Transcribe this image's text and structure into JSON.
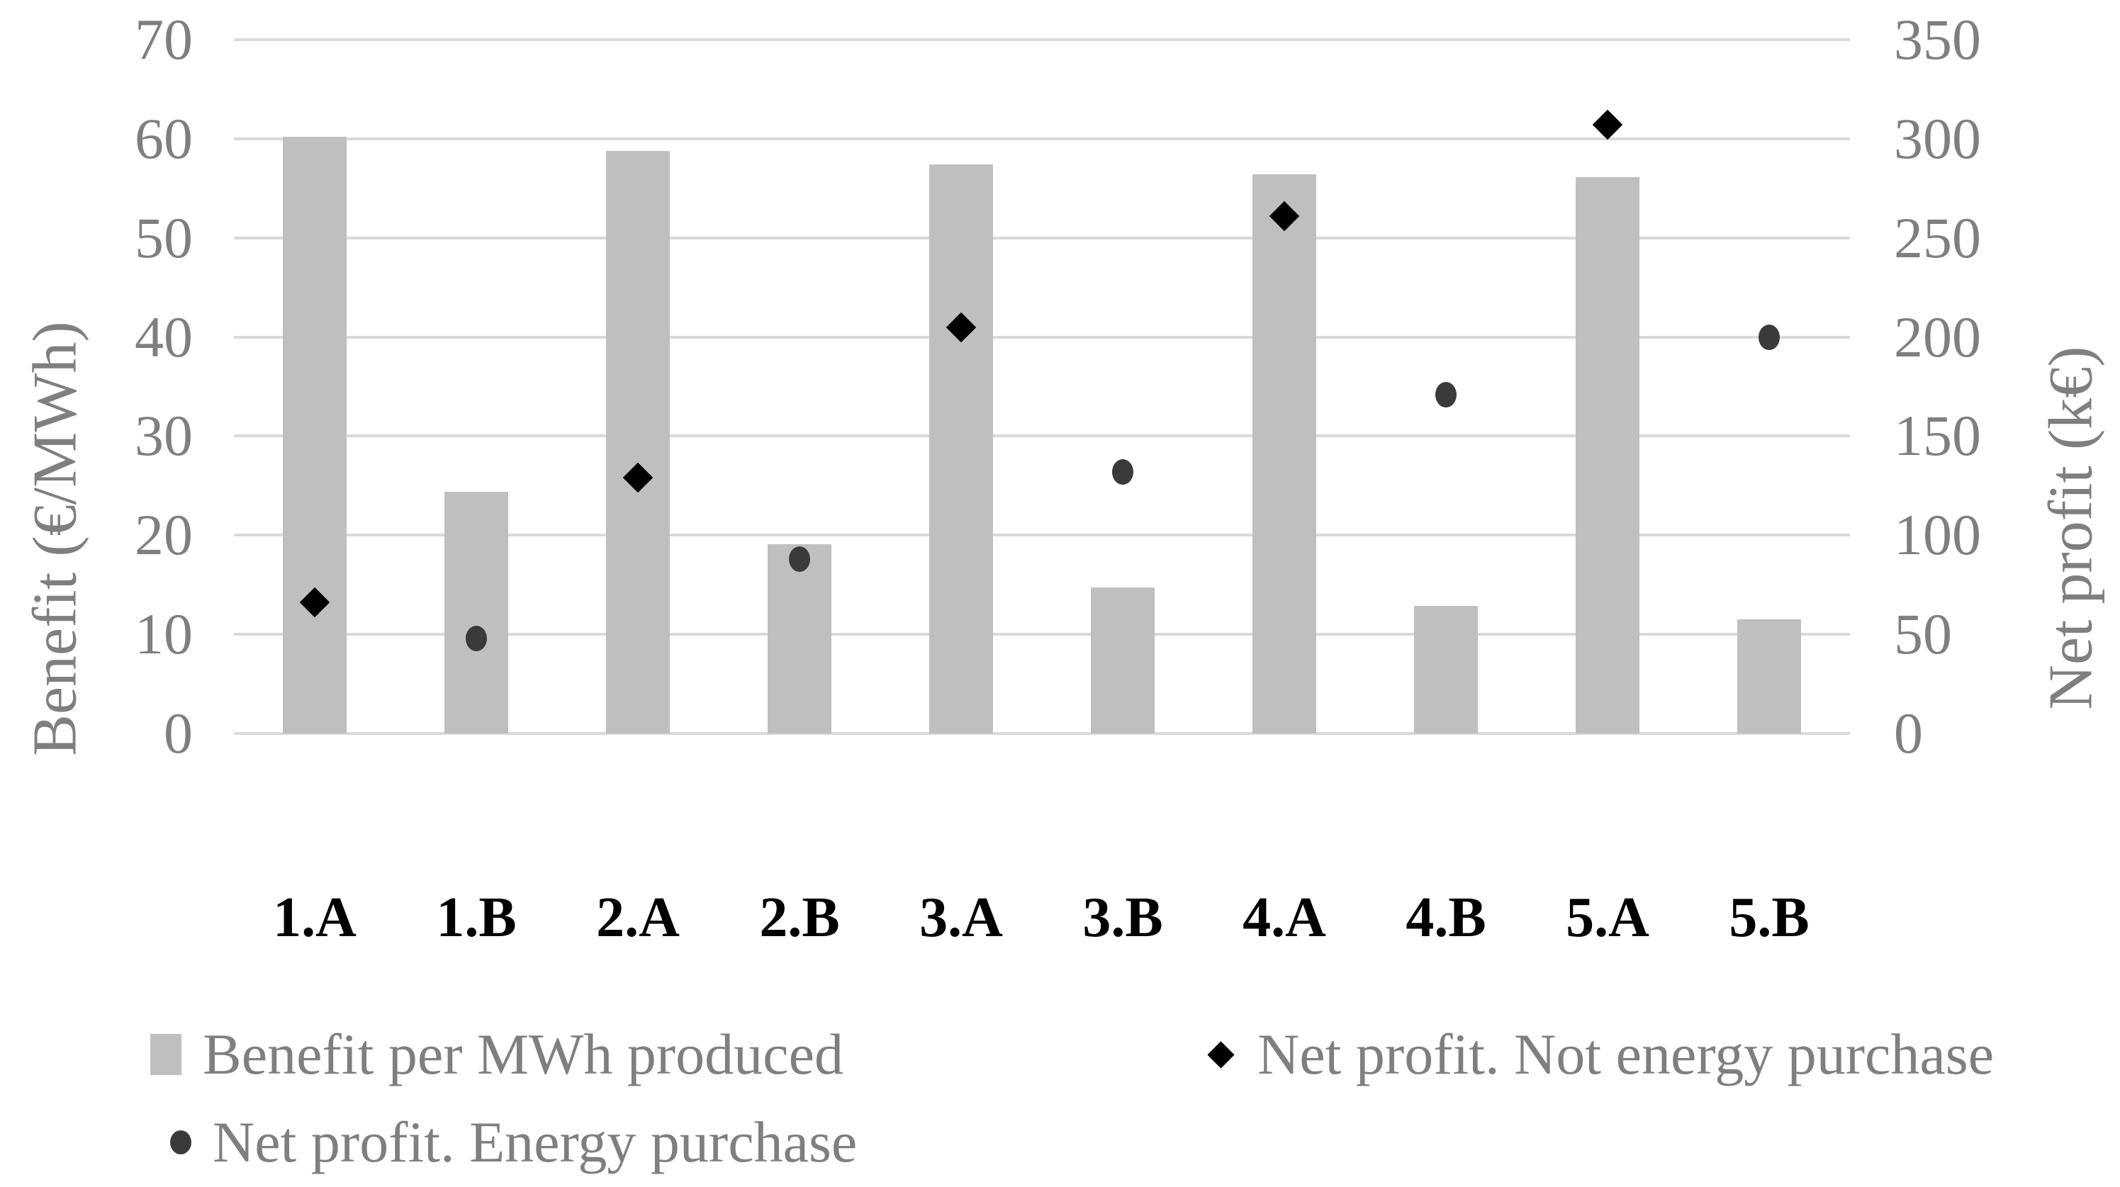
{
  "chart_data": {
    "type": "combo",
    "subtype": "bar + scatter markers, dual axis",
    "categories": [
      "1.A",
      "1.B",
      "2.A",
      "2.B",
      "3.A",
      "3.B",
      "4.A",
      "4.B",
      "5.A",
      "5.B"
    ],
    "series": [
      {
        "name": "Benefit per MWh produced",
        "type": "bar",
        "axis": "left",
        "marker": "bar",
        "values": [
          60.2,
          24.4,
          58.8,
          19.1,
          57.4,
          14.7,
          56.4,
          12.9,
          56.1,
          11.5
        ]
      },
      {
        "name": "Net profit. Not energy purchase",
        "type": "scatter",
        "axis": "right",
        "marker": "diamond",
        "values": [
          66,
          null,
          129,
          null,
          205,
          null,
          261,
          null,
          307,
          null
        ]
      },
      {
        "name": "Net profit. Energy purchase",
        "type": "scatter",
        "axis": "right",
        "marker": "circle",
        "values": [
          null,
          48,
          null,
          88,
          null,
          132,
          null,
          171,
          null,
          200
        ]
      }
    ],
    "left_axis": {
      "label": "Benefit (€/MWh)",
      "min": 0,
      "max": 70,
      "ticks": [
        70,
        60,
        50,
        40,
        30,
        20,
        10,
        0
      ]
    },
    "right_axis": {
      "label": "Net profit (k€)",
      "min": 0,
      "max": 350,
      "ticks": [
        350,
        300,
        250,
        200,
        150,
        100,
        50,
        0
      ]
    },
    "grid": true,
    "legend_position": "bottom"
  },
  "colors": {
    "bar_fill": "#bfbfbf",
    "diamond_marker": "#000000",
    "circle_marker": "#3a3a3a",
    "gridline": "#d9d9d9",
    "axis_text": "#7f7f7f",
    "category_text": "#000000",
    "background": "#ffffff"
  }
}
